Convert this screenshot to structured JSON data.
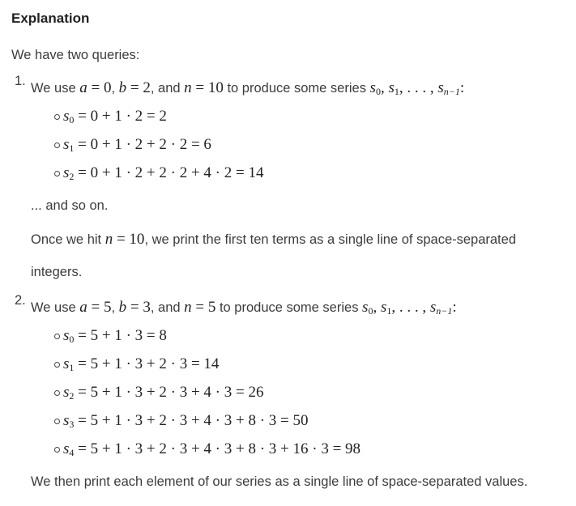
{
  "title": "Explanation",
  "intro": "We have two queries:",
  "queries": [
    {
      "number": "1.",
      "intro": [
        {
          "t": "We use "
        },
        {
          "v": "a"
        },
        {
          "m": " = 0"
        },
        {
          "t": ", "
        },
        {
          "v": "b"
        },
        {
          "m": " = 2"
        },
        {
          "t": ", and "
        },
        {
          "v": "n"
        },
        {
          "m": " = 10"
        },
        {
          "t": " to produce some series "
        },
        {
          "v": "s",
          "sub": "0"
        },
        {
          "m": ", "
        },
        {
          "v": "s",
          "sub": "1"
        },
        {
          "m": ", . . . , "
        },
        {
          "v": "s",
          "sub": "n−1"
        },
        {
          "m": ":"
        }
      ],
      "bullets": [
        [
          {
            "v": "s",
            "sub": "0"
          },
          {
            "m": " = 0 + 1 · 2 = 2"
          }
        ],
        [
          {
            "v": "s",
            "sub": "1"
          },
          {
            "m": " = 0 + 1 · 2 + 2 · 2 = 6"
          }
        ],
        [
          {
            "v": "s",
            "sub": "2"
          },
          {
            "m": " = 0 + 1 · 2 + 2 · 2 + 4 · 2 = 14"
          }
        ]
      ],
      "after": [
        [
          {
            "t": "... and so on."
          }
        ],
        [
          {
            "t": "Once we hit "
          },
          {
            "v": "n"
          },
          {
            "m": " = 10"
          },
          {
            "t": ", we print the first ten terms as a single line of space-separated"
          }
        ],
        [
          {
            "t": "integers."
          }
        ]
      ]
    },
    {
      "number": "2.",
      "intro": [
        {
          "t": "We use "
        },
        {
          "v": "a"
        },
        {
          "m": " = 5"
        },
        {
          "t": ", "
        },
        {
          "v": "b"
        },
        {
          "m": " = 3"
        },
        {
          "t": ", and "
        },
        {
          "v": "n"
        },
        {
          "m": " = 5"
        },
        {
          "t": " to produce some series "
        },
        {
          "v": "s",
          "sub": "0"
        },
        {
          "m": ", "
        },
        {
          "v": "s",
          "sub": "1"
        },
        {
          "m": ", . . . , "
        },
        {
          "v": "s",
          "sub": "n−1"
        },
        {
          "m": ":"
        }
      ],
      "bullets": [
        [
          {
            "v": "s",
            "sub": "0"
          },
          {
            "m": " = 5 + 1 · 3 = 8"
          }
        ],
        [
          {
            "v": "s",
            "sub": "1"
          },
          {
            "m": " = 5 + 1 · 3 + 2 · 3 = 14"
          }
        ],
        [
          {
            "v": "s",
            "sub": "2"
          },
          {
            "m": " = 5 + 1 · 3 + 2 · 3 + 4 · 3 = 26"
          }
        ],
        [
          {
            "v": "s",
            "sub": "3"
          },
          {
            "m": " = 5 + 1 · 3 + 2 · 3 + 4 · 3 + 8 · 3 = 50"
          }
        ],
        [
          {
            "v": "s",
            "sub": "4"
          },
          {
            "m": " = 5 + 1 · 3 + 2 · 3 + 4 · 3 + 8 · 3 + 16 · 3 = 98"
          }
        ]
      ],
      "after": [
        [
          {
            "t": "We then print each element of our series as a single line of space-separated values."
          }
        ]
      ]
    }
  ]
}
